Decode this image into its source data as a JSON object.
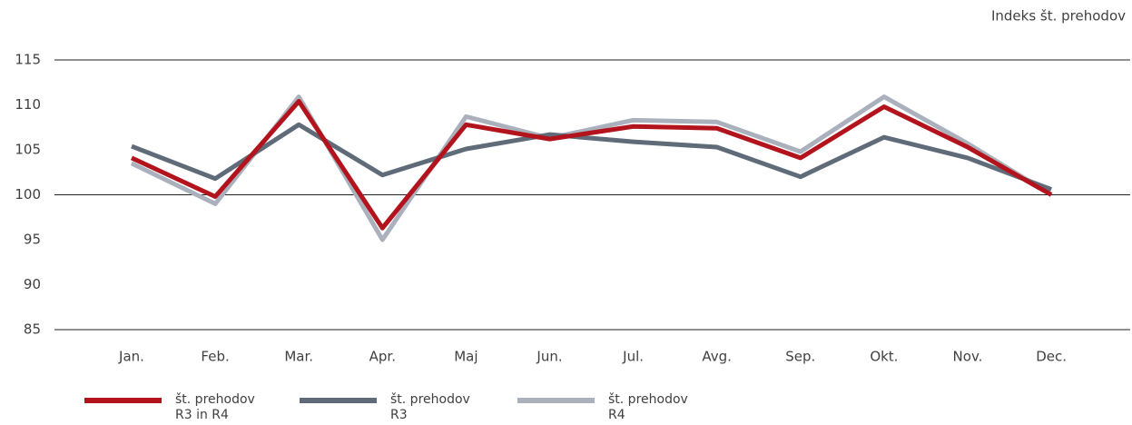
{
  "chart_data": {
    "type": "line",
    "y_axis_label": "Indeks št. prehodov",
    "categories": [
      "Jan.",
      "Feb.",
      "Mar.",
      "Apr.",
      "Maj",
      "Jun.",
      "Jul.",
      "Avg.",
      "Sep.",
      "Okt.",
      "Nov.",
      "Dec."
    ],
    "series": [
      {
        "name": "št. prehodov R3 in R4",
        "color": "#b3131c",
        "values": [
          104.1,
          99.8,
          110.4,
          96.3,
          107.8,
          106.2,
          107.6,
          107.4,
          104.1,
          109.8,
          105.3,
          100
        ]
      },
      {
        "name": "št. prehodov R3",
        "color": "#5f6b79",
        "values": [
          105.4,
          101.8,
          107.8,
          102.2,
          105.1,
          106.7,
          105.9,
          105.3,
          102.0,
          106.4,
          104.1,
          100.6
        ]
      },
      {
        "name": "št. prehodov R4",
        "color": "#aab1bc",
        "values": [
          103.5,
          99.0,
          110.9,
          95.0,
          108.7,
          106.3,
          108.3,
          108.1,
          104.8,
          110.9,
          105.7,
          100
        ]
      }
    ],
    "ylim": [
      85,
      115
    ],
    "yticks": [
      85,
      90,
      95,
      100,
      105,
      110,
      115
    ],
    "grid_lines": [
      85,
      100,
      115
    ],
    "legend": "bottom"
  }
}
